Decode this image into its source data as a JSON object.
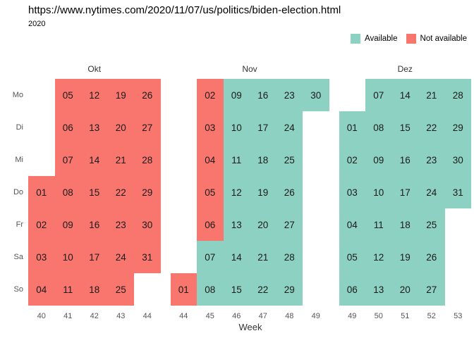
{
  "chart_data": {
    "type": "heatmap",
    "title": "https://www.nytimes.com/2020/11/07/us/politics/biden-election.html",
    "subtitle": "2020",
    "xlabel": "Week",
    "legend": [
      {
        "label": "Available",
        "status": "available",
        "color": "#8DD1C2"
      },
      {
        "label": "Not available",
        "status": "not_available",
        "color": "#F8766D"
      }
    ],
    "day_labels": [
      "Mo",
      "Di",
      "Mi",
      "Do",
      "Fr",
      "Sa",
      "So"
    ],
    "months": [
      {
        "name": "Okt",
        "weeks": [
          {
            "week": "40",
            "days": [
              null,
              null,
              null,
              {
                "day": "01",
                "status": "not_available"
              },
              {
                "day": "02",
                "status": "not_available"
              },
              {
                "day": "03",
                "status": "not_available"
              },
              {
                "day": "04",
                "status": "not_available"
              }
            ]
          },
          {
            "week": "41",
            "days": [
              {
                "day": "05",
                "status": "not_available"
              },
              {
                "day": "06",
                "status": "not_available"
              },
              {
                "day": "07",
                "status": "not_available"
              },
              {
                "day": "08",
                "status": "not_available"
              },
              {
                "day": "09",
                "status": "not_available"
              },
              {
                "day": "10",
                "status": "not_available"
              },
              {
                "day": "11",
                "status": "not_available"
              }
            ]
          },
          {
            "week": "42",
            "days": [
              {
                "day": "12",
                "status": "not_available"
              },
              {
                "day": "13",
                "status": "not_available"
              },
              {
                "day": "14",
                "status": "not_available"
              },
              {
                "day": "15",
                "status": "not_available"
              },
              {
                "day": "16",
                "status": "not_available"
              },
              {
                "day": "17",
                "status": "not_available"
              },
              {
                "day": "18",
                "status": "not_available"
              }
            ]
          },
          {
            "week": "43",
            "days": [
              {
                "day": "19",
                "status": "not_available"
              },
              {
                "day": "20",
                "status": "not_available"
              },
              {
                "day": "21",
                "status": "not_available"
              },
              {
                "day": "22",
                "status": "not_available"
              },
              {
                "day": "23",
                "status": "not_available"
              },
              {
                "day": "24",
                "status": "not_available"
              },
              {
                "day": "25",
                "status": "not_available"
              }
            ]
          },
          {
            "week": "44",
            "days": [
              {
                "day": "26",
                "status": "not_available"
              },
              {
                "day": "27",
                "status": "not_available"
              },
              {
                "day": "28",
                "status": "not_available"
              },
              {
                "day": "29",
                "status": "not_available"
              },
              {
                "day": "30",
                "status": "not_available"
              },
              {
                "day": "31",
                "status": "not_available"
              },
              null
            ]
          }
        ]
      },
      {
        "name": "Nov",
        "weeks": [
          {
            "week": "44",
            "days": [
              null,
              null,
              null,
              null,
              null,
              null,
              {
                "day": "01",
                "status": "not_available"
              }
            ]
          },
          {
            "week": "45",
            "days": [
              {
                "day": "02",
                "status": "not_available"
              },
              {
                "day": "03",
                "status": "not_available"
              },
              {
                "day": "04",
                "status": "not_available"
              },
              {
                "day": "05",
                "status": "not_available"
              },
              {
                "day": "06",
                "status": "not_available"
              },
              {
                "day": "07",
                "status": "available"
              },
              {
                "day": "08",
                "status": "available"
              }
            ]
          },
          {
            "week": "46",
            "days": [
              {
                "day": "09",
                "status": "available"
              },
              {
                "day": "10",
                "status": "available"
              },
              {
                "day": "11",
                "status": "available"
              },
              {
                "day": "12",
                "status": "available"
              },
              {
                "day": "13",
                "status": "available"
              },
              {
                "day": "14",
                "status": "available"
              },
              {
                "day": "15",
                "status": "available"
              }
            ]
          },
          {
            "week": "47",
            "days": [
              {
                "day": "16",
                "status": "available"
              },
              {
                "day": "17",
                "status": "available"
              },
              {
                "day": "18",
                "status": "available"
              },
              {
                "day": "19",
                "status": "available"
              },
              {
                "day": "20",
                "status": "available"
              },
              {
                "day": "21",
                "status": "available"
              },
              {
                "day": "22",
                "status": "available"
              }
            ]
          },
          {
            "week": "48",
            "days": [
              {
                "day": "23",
                "status": "available"
              },
              {
                "day": "24",
                "status": "available"
              },
              {
                "day": "25",
                "status": "available"
              },
              {
                "day": "26",
                "status": "available"
              },
              {
                "day": "27",
                "status": "available"
              },
              {
                "day": "28",
                "status": "available"
              },
              {
                "day": "29",
                "status": "available"
              }
            ]
          },
          {
            "week": "49",
            "days": [
              {
                "day": "30",
                "status": "available"
              },
              null,
              null,
              null,
              null,
              null,
              null
            ]
          }
        ]
      },
      {
        "name": "Dez",
        "weeks": [
          {
            "week": "49",
            "days": [
              null,
              {
                "day": "01",
                "status": "available"
              },
              {
                "day": "02",
                "status": "available"
              },
              {
                "day": "03",
                "status": "available"
              },
              {
                "day": "04",
                "status": "available"
              },
              {
                "day": "05",
                "status": "available"
              },
              {
                "day": "06",
                "status": "available"
              }
            ]
          },
          {
            "week": "50",
            "days": [
              {
                "day": "07",
                "status": "available"
              },
              {
                "day": "08",
                "status": "available"
              },
              {
                "day": "09",
                "status": "available"
              },
              {
                "day": "10",
                "status": "available"
              },
              {
                "day": "11",
                "status": "available"
              },
              {
                "day": "12",
                "status": "available"
              },
              {
                "day": "13",
                "status": "available"
              }
            ]
          },
          {
            "week": "51",
            "days": [
              {
                "day": "14",
                "status": "available"
              },
              {
                "day": "15",
                "status": "available"
              },
              {
                "day": "16",
                "status": "available"
              },
              {
                "day": "17",
                "status": "available"
              },
              {
                "day": "18",
                "status": "available"
              },
              {
                "day": "19",
                "status": "available"
              },
              {
                "day": "20",
                "status": "available"
              }
            ]
          },
          {
            "week": "52",
            "days": [
              {
                "day": "21",
                "status": "available"
              },
              {
                "day": "22",
                "status": "available"
              },
              {
                "day": "23",
                "status": "available"
              },
              {
                "day": "24",
                "status": "available"
              },
              {
                "day": "25",
                "status": "available"
              },
              {
                "day": "26",
                "status": "available"
              },
              {
                "day": "27",
                "status": "available"
              }
            ]
          },
          {
            "week": "53",
            "days": [
              {
                "day": "28",
                "status": "available"
              },
              {
                "day": "29",
                "status": "available"
              },
              {
                "day": "30",
                "status": "available"
              },
              {
                "day": "31",
                "status": "available"
              },
              null,
              null,
              null
            ]
          }
        ]
      }
    ]
  }
}
